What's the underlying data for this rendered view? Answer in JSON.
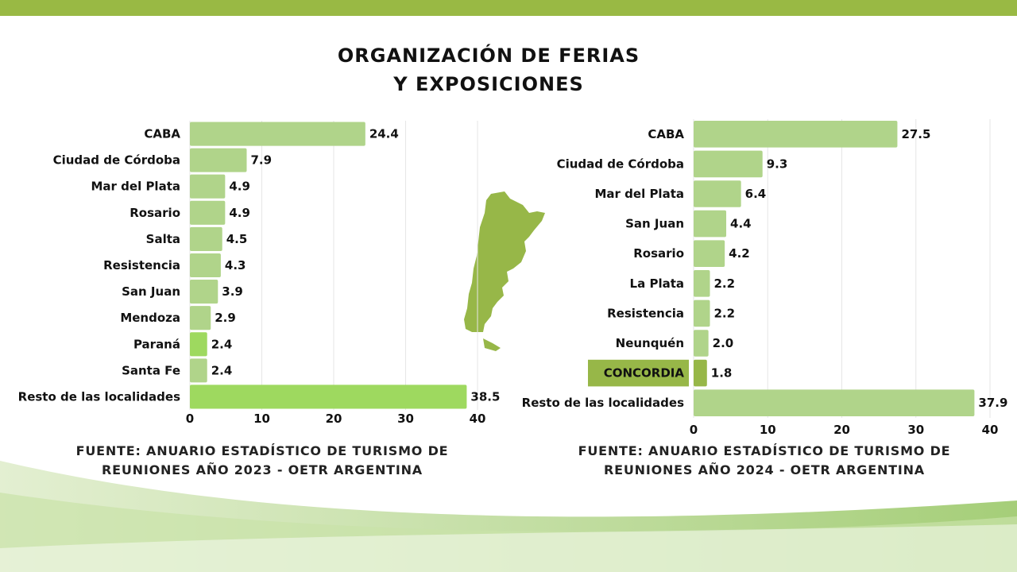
{
  "title": {
    "line1": "ORGANIZACIÓN DE FERIAS",
    "line2": "Y EXPOSICIONES"
  },
  "colors": {
    "bar": "#b0d48a",
    "bar_highlight": "#9ed95f",
    "concordia": "#97b748",
    "brand": "#99b944"
  },
  "chart_data": [
    {
      "type": "bar",
      "orientation": "horizontal",
      "year": 2023,
      "categories": [
        "CABA",
        "Ciudad de Córdoba",
        "Mar del Plata",
        "Rosario",
        "Salta",
        "Resistencia",
        "San Juan",
        "Mendoza",
        "Paraná",
        "Santa Fe",
        "Resto de las localidades"
      ],
      "values": [
        24.4,
        7.9,
        4.9,
        4.9,
        4.5,
        4.3,
        3.9,
        2.9,
        2.4,
        2.4,
        38.5
      ],
      "labels": [
        "24.4",
        "7.9",
        "4.9",
        "4.9",
        "4.5",
        "4.3",
        "3.9",
        "2.9",
        "2.4",
        "2.4",
        "38.5"
      ],
      "highlight": [
        false,
        false,
        false,
        false,
        false,
        false,
        false,
        false,
        true,
        false,
        true
      ],
      "xlim": [
        0,
        40
      ],
      "xticks": [
        "0",
        "10",
        "20",
        "30",
        "40"
      ],
      "grid": true,
      "source": {
        "line1": "FUENTE: ANUARIO ESTADÍSTICO DE TURISMO DE",
        "line2": "REUNIONES AÑO 2023 - OETR ARGENTINA"
      }
    },
    {
      "type": "bar",
      "orientation": "horizontal",
      "year": 2024,
      "categories": [
        "CABA",
        "Ciudad de Córdoba",
        "Mar del Plata",
        "San Juan",
        "Rosario",
        "La Plata",
        "Resistencia",
        "Neunquén",
        "CONCORDIA",
        "Resto de las localidades"
      ],
      "values": [
        27.5,
        9.3,
        6.4,
        4.4,
        4.2,
        2.2,
        2.2,
        2.0,
        1.8,
        37.9
      ],
      "labels": [
        "27.5",
        "9.3",
        "6.4",
        "4.4",
        "4.2",
        "2.2",
        "2.2",
        "2.0",
        "1.8",
        "37.9"
      ],
      "highlight": [
        false,
        false,
        false,
        false,
        false,
        false,
        false,
        false,
        true,
        false
      ],
      "xlim": [
        0,
        40
      ],
      "xticks": [
        "0",
        "10",
        "20",
        "30",
        "40"
      ],
      "grid": true,
      "source": {
        "line1": "FUENTE: ANUARIO ESTADÍSTICO DE TURISMO DE",
        "line2": "REUNIONES AÑO 2024 - OETR ARGENTINA"
      }
    }
  ]
}
